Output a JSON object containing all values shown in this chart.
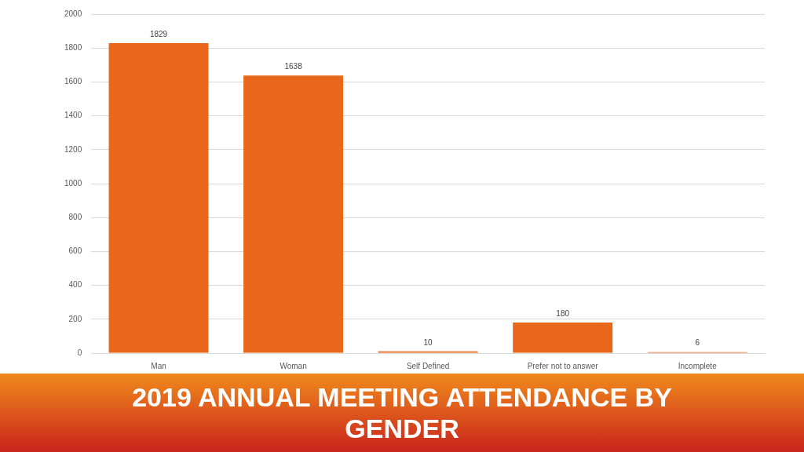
{
  "chart_data": {
    "type": "bar",
    "title": "2019 ANNUAL MEETING ATTENDANCE BY GENDER",
    "categories": [
      "Man",
      "Woman",
      "Self Defined",
      "Prefer not to answer",
      "Incomplete"
    ],
    "values": [
      1829,
      1638,
      10,
      180,
      6
    ],
    "color": "#e8671b",
    "ylim": [
      0,
      2000
    ],
    "yticks": [
      0,
      200,
      400,
      600,
      800,
      1000,
      1200,
      1400,
      1600,
      1800,
      2000
    ],
    "grid": "y",
    "legend": false,
    "data_labels": true
  }
}
